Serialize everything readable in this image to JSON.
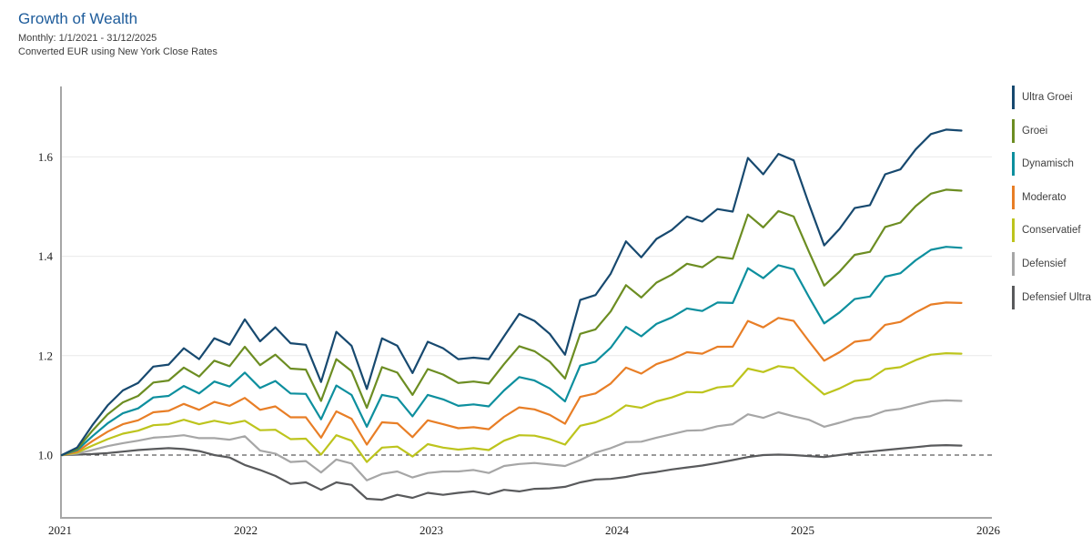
{
  "header": {
    "title": "Growth of Wealth",
    "period": "Monthly: 1/1/2021 - 31/12/2025",
    "currency_note": "Converted EUR using New York Close Rates",
    "title_color": "#1E5C9B"
  },
  "chart_data": {
    "type": "line",
    "title": "Growth of Wealth",
    "frequency": "monthly",
    "x_start": "2021-01",
    "x_end": "2025-12",
    "x_year_labels": [
      "2021",
      "2022",
      "2023",
      "2024",
      "2025",
      "2026"
    ],
    "y_ticks": [
      1.0,
      1.2,
      1.4,
      1.6
    ],
    "ylim": [
      0.87,
      1.74
    ],
    "baseline": 1.0,
    "grid": "horizontal",
    "legend_position": "right",
    "axis_color": "#a6a6a6",
    "grid_color": "#e9e9e9",
    "baseline_color": "#333333",
    "series": [
      {
        "name": "Ultra Groei",
        "color": "#17496F",
        "values": [
          1.0,
          1.015,
          1.06,
          1.1,
          1.13,
          1.145,
          1.178,
          1.182,
          1.215,
          1.193,
          1.235,
          1.222,
          1.273,
          1.229,
          1.257,
          1.225,
          1.222,
          1.147,
          1.248,
          1.22,
          1.133,
          1.235,
          1.22,
          1.165,
          1.228,
          1.215,
          1.193,
          1.196,
          1.193,
          1.239,
          1.284,
          1.27,
          1.244,
          1.202,
          1.312,
          1.322,
          1.365,
          1.43,
          1.398,
          1.435,
          1.453,
          1.48,
          1.47,
          1.495,
          1.49,
          1.598,
          1.565,
          1.606,
          1.593,
          1.505,
          1.422,
          1.455,
          1.497,
          1.503,
          1.565,
          1.575,
          1.615,
          1.646,
          1.655,
          1.653
        ]
      },
      {
        "name": "Groei",
        "color": "#6C8D22",
        "values": [
          1.0,
          1.012,
          1.049,
          1.082,
          1.106,
          1.119,
          1.146,
          1.15,
          1.176,
          1.158,
          1.19,
          1.179,
          1.218,
          1.181,
          1.202,
          1.174,
          1.172,
          1.109,
          1.193,
          1.169,
          1.095,
          1.177,
          1.166,
          1.121,
          1.173,
          1.162,
          1.145,
          1.148,
          1.144,
          1.183,
          1.219,
          1.209,
          1.188,
          1.154,
          1.244,
          1.253,
          1.289,
          1.342,
          1.317,
          1.347,
          1.363,
          1.385,
          1.378,
          1.399,
          1.395,
          1.484,
          1.458,
          1.491,
          1.48,
          1.409,
          1.341,
          1.369,
          1.403,
          1.409,
          1.459,
          1.468,
          1.501,
          1.526,
          1.534,
          1.532
        ]
      },
      {
        "name": "Dynamisch",
        "color": "#0D8F9E",
        "values": [
          1.0,
          1.01,
          1.038,
          1.064,
          1.084,
          1.094,
          1.116,
          1.119,
          1.139,
          1.124,
          1.148,
          1.138,
          1.166,
          1.135,
          1.149,
          1.124,
          1.123,
          1.072,
          1.14,
          1.121,
          1.057,
          1.121,
          1.115,
          1.078,
          1.121,
          1.112,
          1.099,
          1.102,
          1.098,
          1.13,
          1.157,
          1.15,
          1.134,
          1.108,
          1.18,
          1.188,
          1.216,
          1.258,
          1.239,
          1.264,
          1.277,
          1.295,
          1.29,
          1.307,
          1.306,
          1.376,
          1.356,
          1.382,
          1.374,
          1.318,
          1.265,
          1.287,
          1.314,
          1.319,
          1.359,
          1.366,
          1.392,
          1.413,
          1.419,
          1.417
        ]
      },
      {
        "name": "Moderato",
        "color": "#E87E26",
        "values": [
          1.0,
          1.007,
          1.028,
          1.047,
          1.062,
          1.07,
          1.086,
          1.089,
          1.103,
          1.091,
          1.107,
          1.099,
          1.115,
          1.091,
          1.098,
          1.076,
          1.076,
          1.035,
          1.088,
          1.073,
          1.021,
          1.066,
          1.064,
          1.036,
          1.07,
          1.062,
          1.054,
          1.056,
          1.052,
          1.077,
          1.096,
          1.092,
          1.081,
          1.063,
          1.117,
          1.124,
          1.144,
          1.176,
          1.164,
          1.183,
          1.193,
          1.207,
          1.204,
          1.218,
          1.218,
          1.27,
          1.257,
          1.276,
          1.27,
          1.229,
          1.19,
          1.207,
          1.228,
          1.232,
          1.262,
          1.268,
          1.287,
          1.303,
          1.307,
          1.306
        ]
      },
      {
        "name": "Conservatief",
        "color": "#BDC41D",
        "values": [
          1.0,
          1.005,
          1.019,
          1.032,
          1.043,
          1.049,
          1.06,
          1.062,
          1.071,
          1.062,
          1.069,
          1.063,
          1.069,
          1.05,
          1.051,
          1.032,
          1.033,
          1.001,
          1.04,
          1.029,
          0.986,
          1.015,
          1.017,
          0.997,
          1.022,
          1.015,
          1.011,
          1.014,
          1.01,
          1.029,
          1.04,
          1.039,
          1.032,
          1.021,
          1.059,
          1.066,
          1.079,
          1.1,
          1.095,
          1.108,
          1.116,
          1.127,
          1.126,
          1.136,
          1.139,
          1.174,
          1.167,
          1.179,
          1.175,
          1.148,
          1.122,
          1.134,
          1.149,
          1.153,
          1.173,
          1.177,
          1.191,
          1.202,
          1.205,
          1.204
        ]
      },
      {
        "name": "Defensief",
        "color": "#A6A6A6",
        "values": [
          1.0,
          1.003,
          1.01,
          1.018,
          1.024,
          1.029,
          1.035,
          1.037,
          1.04,
          1.034,
          1.034,
          1.031,
          1.038,
          1.009,
          1.003,
          0.986,
          0.988,
          0.965,
          0.991,
          0.983,
          0.949,
          0.962,
          0.967,
          0.955,
          0.964,
          0.967,
          0.967,
          0.97,
          0.964,
          0.978,
          0.982,
          0.984,
          0.981,
          0.978,
          0.99,
          1.005,
          1.014,
          1.026,
          1.027,
          1.035,
          1.042,
          1.049,
          1.05,
          1.058,
          1.062,
          1.082,
          1.075,
          1.086,
          1.078,
          1.071,
          1.057,
          1.065,
          1.074,
          1.078,
          1.089,
          1.093,
          1.101,
          1.108,
          1.11,
          1.109
        ]
      },
      {
        "name": "Defensief Ultra",
        "color": "#595A5C",
        "values": [
          1.0,
          1.001,
          1.002,
          1.004,
          1.007,
          1.01,
          1.012,
          1.014,
          1.012,
          1.008,
          1.0,
          0.995,
          0.98,
          0.97,
          0.958,
          0.942,
          0.945,
          0.93,
          0.945,
          0.94,
          0.912,
          0.91,
          0.92,
          0.914,
          0.924,
          0.92,
          0.924,
          0.927,
          0.921,
          0.93,
          0.927,
          0.932,
          0.933,
          0.936,
          0.945,
          0.951,
          0.952,
          0.956,
          0.962,
          0.966,
          0.971,
          0.975,
          0.979,
          0.984,
          0.99,
          0.996,
          1.0,
          1.001,
          1.0,
          0.998,
          0.996,
          1.0,
          1.004,
          1.007,
          1.01,
          1.013,
          1.016,
          1.019,
          1.02,
          1.019
        ]
      }
    ]
  }
}
